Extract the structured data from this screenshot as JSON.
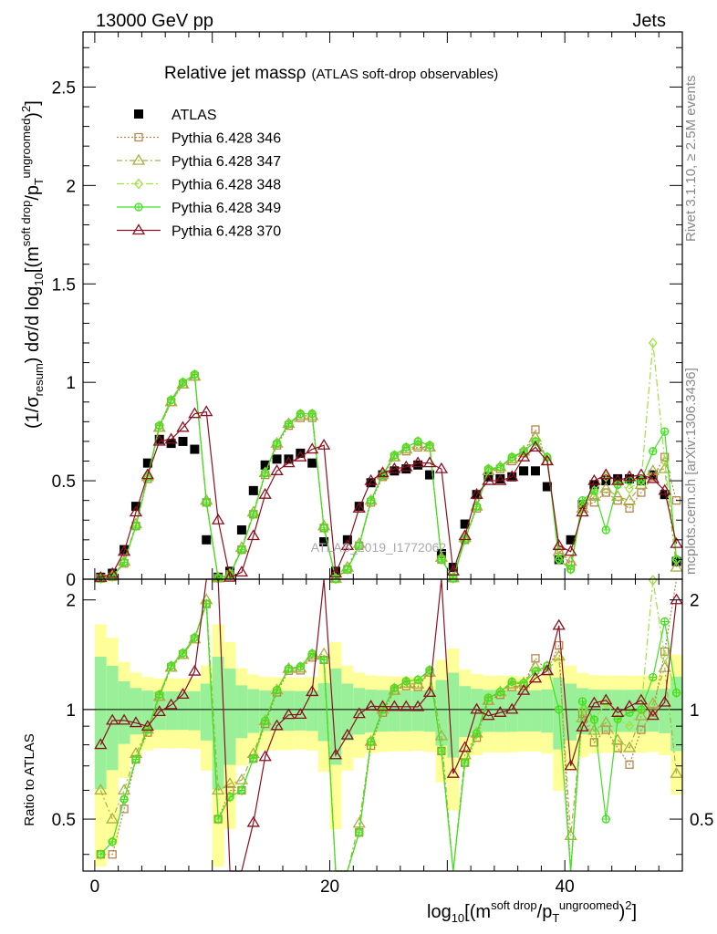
{
  "header": {
    "left": "13000 GeV pp",
    "right": "Jets"
  },
  "side_labels": {
    "rivet": "Rivet 3.1.10, ≥ 2.5M events",
    "mcplots": "mcplots.cern.ch [arXiv:1306.3436]"
  },
  "watermark": "ATLAS_2019_I1772062",
  "colors": {
    "ATLAS": "#000000",
    "Pythia 6.428 346": "#b8864b",
    "Pythia 6.428 347": "#a8b040",
    "Pythia 6.428 348": "#a0e040",
    "Pythia 6.428 349": "#40e020",
    "Pythia 6.428 370": "#8b1020",
    "band_yellow": "#ffff99",
    "band_green": "#99f099"
  },
  "chart_data": {
    "type": "line",
    "title_main": "Relative jet massρ",
    "title_sub": "(ATLAS soft-drop observables)",
    "ylabel": "(1/σ_resum) dσ/d log10[(m^soft drop/p_T^ungroomed)^2]",
    "xlabel": "log10[(m^soft drop/p_T^ungroomed)^2]",
    "ratio_ylabel": "Ratio to ATLAS",
    "xlim": [
      -1,
      50
    ],
    "ylim": [
      0,
      2.78
    ],
    "ratio_ylim": [
      0.36,
      2.28
    ],
    "x_ticks": [
      "0",
      "20",
      "40"
    ],
    "y_ticks": [
      "0",
      "0.5",
      "1",
      "1.5",
      "2",
      "2.5"
    ],
    "ratio_ticks": [
      "0.5",
      "1",
      "2"
    ],
    "legend": [
      "ATLAS",
      "Pythia 6.428 346",
      "Pythia 6.428 347",
      "Pythia 6.428 348",
      "Pythia 6.428 349",
      "Pythia 6.428 370"
    ],
    "x": [
      0.5,
      1.5,
      2.5,
      3.5,
      4.5,
      5.5,
      6.5,
      7.5,
      8.5,
      9.5,
      10.5,
      11.5,
      12.5,
      13.5,
      14.5,
      15.5,
      16.5,
      17.5,
      18.5,
      19.5,
      20.5,
      21.5,
      22.5,
      23.5,
      24.5,
      25.5,
      26.5,
      27.5,
      28.5,
      29.5,
      30.5,
      31.5,
      32.5,
      33.5,
      34.5,
      35.5,
      36.5,
      37.5,
      38.5,
      39.5,
      40.5,
      41.5,
      42.5,
      43.5,
      44.5,
      45.5,
      46.5,
      47.5,
      48.5,
      49.5
    ],
    "series": [
      {
        "name": "ATLAS",
        "marker": "square",
        "values": [
          0.01,
          0.03,
          0.15,
          0.37,
          0.59,
          0.71,
          0.69,
          0.7,
          0.66,
          0.2,
          0.01,
          0.04,
          0.25,
          0.45,
          0.58,
          0.61,
          0.61,
          0.64,
          0.59,
          0.19,
          0.04,
          0.2,
          0.37,
          0.49,
          0.53,
          0.55,
          0.56,
          0.58,
          0.53,
          0.13,
          0.06,
          0.28,
          0.43,
          0.52,
          0.51,
          0.52,
          0.55,
          0.55,
          0.47,
          0.1,
          0.2,
          0.38,
          0.48,
          0.5,
          0.51,
          0.51,
          0.5,
          0.53,
          0.43,
          0.09
        ]
      },
      {
        "name": "Pythia 6.428 346",
        "marker": "square-open",
        "values": [
          0.004,
          0.012,
          0.08,
          0.27,
          0.51,
          0.77,
          0.9,
          0.99,
          1.03,
          0.39,
          0.005,
          0.024,
          0.15,
          0.33,
          0.53,
          0.68,
          0.78,
          0.82,
          0.82,
          0.26,
          0.002,
          0.05,
          0.17,
          0.39,
          0.52,
          0.62,
          0.65,
          0.67,
          0.67,
          0.1,
          0.005,
          0.2,
          0.36,
          0.55,
          0.56,
          0.6,
          0.64,
          0.76,
          0.6,
          0.15,
          0.07,
          0.37,
          0.39,
          0.44,
          0.4,
          0.36,
          0.44,
          0.52,
          0.62,
          0.4
        ]
      },
      {
        "name": "Pythia 6.428 347",
        "marker": "triangle-open",
        "values": [
          0.006,
          0.015,
          0.09,
          0.28,
          0.52,
          0.77,
          0.9,
          0.99,
          1.03,
          0.4,
          0.006,
          0.025,
          0.16,
          0.34,
          0.54,
          0.69,
          0.79,
          0.83,
          0.83,
          0.27,
          0.003,
          0.06,
          0.18,
          0.4,
          0.53,
          0.62,
          0.66,
          0.68,
          0.67,
          0.11,
          0.006,
          0.21,
          0.37,
          0.55,
          0.57,
          0.61,
          0.65,
          0.72,
          0.6,
          0.14,
          0.09,
          0.36,
          0.42,
          0.46,
          0.42,
          0.4,
          0.48,
          0.55,
          0.56,
          0.06
        ]
      },
      {
        "name": "Pythia 6.428 348",
        "marker": "diamond-open",
        "values": [
          0.004,
          0.013,
          0.085,
          0.27,
          0.52,
          0.78,
          0.91,
          1.0,
          1.04,
          0.39,
          0.005,
          0.023,
          0.15,
          0.33,
          0.54,
          0.69,
          0.79,
          0.84,
          0.84,
          0.26,
          0.002,
          0.05,
          0.17,
          0.4,
          0.53,
          0.63,
          0.67,
          0.7,
          0.68,
          0.1,
          0.005,
          0.2,
          0.37,
          0.56,
          0.57,
          0.62,
          0.65,
          0.7,
          0.62,
          0.1,
          0.05,
          0.38,
          0.45,
          0.52,
          0.48,
          0.46,
          0.5,
          1.2,
          0.6,
          0.1
        ]
      },
      {
        "name": "Pythia 6.428 349",
        "marker": "circle-cross",
        "values": [
          0.004,
          0.013,
          0.085,
          0.27,
          0.52,
          0.78,
          0.91,
          1.0,
          1.04,
          0.39,
          0.005,
          0.023,
          0.15,
          0.33,
          0.54,
          0.69,
          0.79,
          0.84,
          0.84,
          0.26,
          0.002,
          0.05,
          0.17,
          0.4,
          0.53,
          0.63,
          0.67,
          0.7,
          0.68,
          0.1,
          0.005,
          0.2,
          0.37,
          0.56,
          0.57,
          0.62,
          0.65,
          0.7,
          0.62,
          0.1,
          0.05,
          0.4,
          0.45,
          0.25,
          0.48,
          0.5,
          0.5,
          0.65,
          0.75,
          0.1
        ]
      },
      {
        "name": "Pythia 6.428 370",
        "marker": "triangle-open",
        "values": [
          0.008,
          0.028,
          0.14,
          0.34,
          0.53,
          0.7,
          0.71,
          0.77,
          0.84,
          0.85,
          0.3,
          0.009,
          0.035,
          0.22,
          0.43,
          0.55,
          0.59,
          0.62,
          0.66,
          0.68,
          0.03,
          0.17,
          0.36,
          0.5,
          0.54,
          0.56,
          0.57,
          0.59,
          0.59,
          0.56,
          0.04,
          0.22,
          0.43,
          0.5,
          0.5,
          0.52,
          0.62,
          0.67,
          0.6,
          0.17,
          0.14,
          0.34,
          0.5,
          0.53,
          0.5,
          0.52,
          0.53,
          0.51,
          0.45,
          0.18
        ]
      }
    ]
  }
}
